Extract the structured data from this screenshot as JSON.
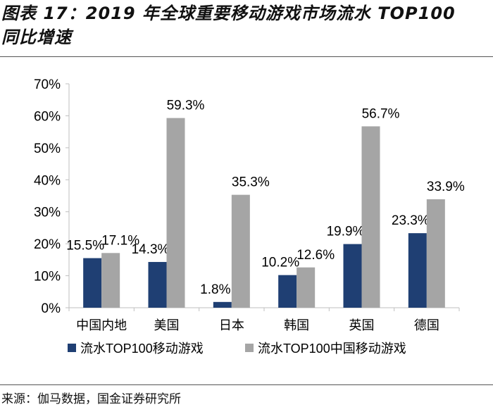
{
  "header": {
    "title_line1": "图表 17：2019 年全球重要移动游戏市场流水 TOP100",
    "title_line2": "同比增速"
  },
  "footer": {
    "source": "来源：伽马数据，国金证券研究所"
  },
  "colors": {
    "series1": "#1f3f73",
    "series2": "#a5a5a5",
    "axis": "#bfbfbf",
    "text": "#000000"
  },
  "chart_data": {
    "type": "bar",
    "title": "",
    "xlabel": "",
    "ylabel": "",
    "ylim": [
      0,
      70
    ],
    "yticks": [
      0,
      10,
      20,
      30,
      40,
      50,
      60,
      70
    ],
    "ytick_labels": [
      "0%",
      "10%",
      "20%",
      "30%",
      "40%",
      "50%",
      "60%",
      "70%"
    ],
    "grid": false,
    "legend_position": "bottom",
    "categories": [
      "中国内地",
      "美国",
      "日本",
      "韩国",
      "英国",
      "德国"
    ],
    "series": [
      {
        "name": "流水TOP100移动游戏",
        "values": [
          15.5,
          14.3,
          1.8,
          10.2,
          19.9,
          23.3
        ],
        "labels": [
          "15.5%",
          "14.3%",
          "1.8%",
          "10.2%",
          "19.9%",
          "23.3%"
        ]
      },
      {
        "name": "流水TOP100中国移动游戏",
        "values": [
          17.1,
          59.3,
          35.3,
          12.6,
          56.7,
          33.9
        ],
        "labels": [
          "17.1%",
          "59.3%",
          "35.3%",
          "12.6%",
          "56.7%",
          "33.9%"
        ]
      }
    ]
  }
}
